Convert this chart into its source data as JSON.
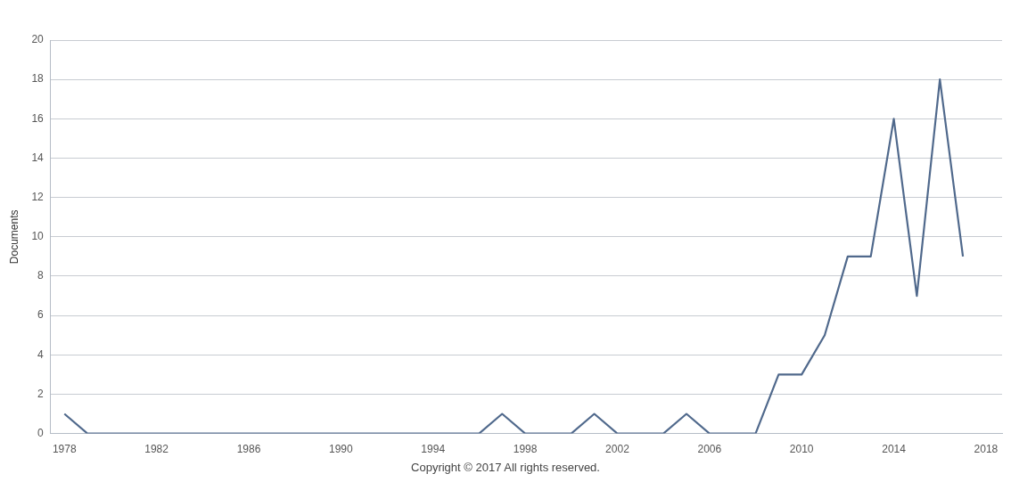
{
  "chart_data": {
    "type": "line",
    "ylabel": "Documents",
    "x": [
      1978,
      1979,
      1980,
      1981,
      1982,
      1983,
      1984,
      1985,
      1986,
      1987,
      1988,
      1989,
      1990,
      1991,
      1992,
      1993,
      1994,
      1995,
      1996,
      1997,
      1998,
      1999,
      2000,
      2001,
      2002,
      2003,
      2004,
      2005,
      2006,
      2007,
      2008,
      2009,
      2010,
      2011,
      2012,
      2013,
      2014,
      2015,
      2016,
      2017
    ],
    "series": [
      {
        "color": "#50698c",
        "values": [
          1,
          0,
          0,
          0,
          0,
          0,
          0,
          0,
          0,
          0,
          0,
          0,
          0,
          0,
          0,
          0,
          0,
          0,
          0,
          1,
          0,
          0,
          0,
          1,
          0,
          0,
          0,
          1,
          0,
          0,
          0,
          3,
          3,
          5,
          9,
          9,
          16,
          7,
          18,
          9
        ]
      }
    ],
    "xlim": [
      1977.4,
      2018.7
    ],
    "xticks": [
      1978,
      1982,
      1986,
      1990,
      1994,
      1998,
      2002,
      2006,
      2010,
      2014,
      2018
    ],
    "ylim": [
      0,
      20
    ],
    "yticks": [
      0,
      2,
      4,
      6,
      8,
      10,
      12,
      14,
      16,
      18,
      20
    ],
    "grid": "y",
    "legend": false,
    "marker": "none",
    "line_style": "solid",
    "annotations": [
      "Copyright © 2017 All rights reserved."
    ]
  }
}
